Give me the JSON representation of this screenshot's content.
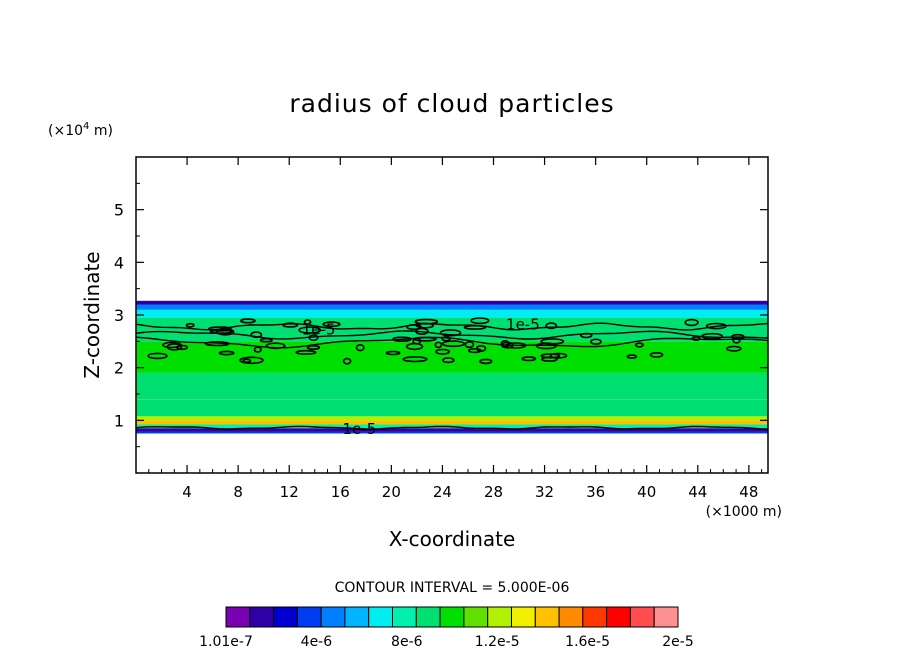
{
  "chart_data": {
    "type": "contour",
    "title": "radius of cloud particles",
    "xlabel": "X-coordinate",
    "ylabel": "Z-coordinate",
    "x_unit": "(×1000 m)",
    "y_unit_prefix": "(×10",
    "y_unit_exp": "4",
    "y_unit_suffix": " m)",
    "xlim": [
      0,
      49.5
    ],
    "ylim": [
      0,
      6
    ],
    "x_ticks": [
      4,
      8,
      12,
      16,
      20,
      24,
      28,
      32,
      36,
      40,
      44,
      48
    ],
    "y_ticks": [
      1,
      2,
      3,
      4,
      5
    ],
    "contour_interval_label": "CONTOUR INTERVAL = 5.000E-06",
    "contour_labels": [
      {
        "text": "1e-5",
        "x": 14.3,
        "z": 2.72
      },
      {
        "text": "1e-5",
        "x": 30.3,
        "z": 2.82
      },
      {
        "text": "1e-5",
        "x": 17.5,
        "z": 0.84
      }
    ],
    "field_bands": [
      {
        "z_bottom": 0.75,
        "z_top": 0.78,
        "value": 4e-06
      },
      {
        "z_bottom": 0.78,
        "z_top": 0.85,
        "value": 1.3e-06
      },
      {
        "z_bottom": 0.85,
        "z_top": 0.92,
        "value": 8e-06
      },
      {
        "z_bottom": 0.92,
        "z_top": 1.0,
        "value": 1.4e-05
      },
      {
        "z_bottom": 1.0,
        "z_top": 1.08,
        "value": 1.2e-05
      },
      {
        "z_bottom": 1.08,
        "z_top": 1.4,
        "value": 9.5e-06
      },
      {
        "z_bottom": 1.4,
        "z_top": 1.9,
        "value": 9e-06
      },
      {
        "z_bottom": 1.9,
        "z_top": 2.5,
        "value": 1.05e-05
      },
      {
        "z_bottom": 2.5,
        "z_top": 2.95,
        "value": 9e-06
      },
      {
        "z_bottom": 2.95,
        "z_top": 3.1,
        "value": 7e-06
      },
      {
        "z_bottom": 3.1,
        "z_top": 3.2,
        "value": 4.5e-06
      },
      {
        "z_bottom": 3.2,
        "z_top": 3.27,
        "value": 2e-06
      }
    ],
    "colorbar": {
      "colors": [
        "#7a00b4",
        "#2d00a8",
        "#0000d0",
        "#003cf0",
        "#0080ff",
        "#00b4ff",
        "#00eef0",
        "#00f0b0",
        "#00e070",
        "#00e000",
        "#60e000",
        "#b0f000",
        "#f0f000",
        "#ffc000",
        "#ff8c00",
        "#ff3800",
        "#ff0000",
        "#ff4d4d",
        "#ff9090"
      ],
      "tick_labels": [
        "1.01e-7",
        "4e-6",
        "8e-6",
        "1.2e-5",
        "1.6e-5",
        "2e-5"
      ],
      "tick_positions": [
        0,
        4,
        8,
        12,
        16,
        20
      ]
    }
  }
}
